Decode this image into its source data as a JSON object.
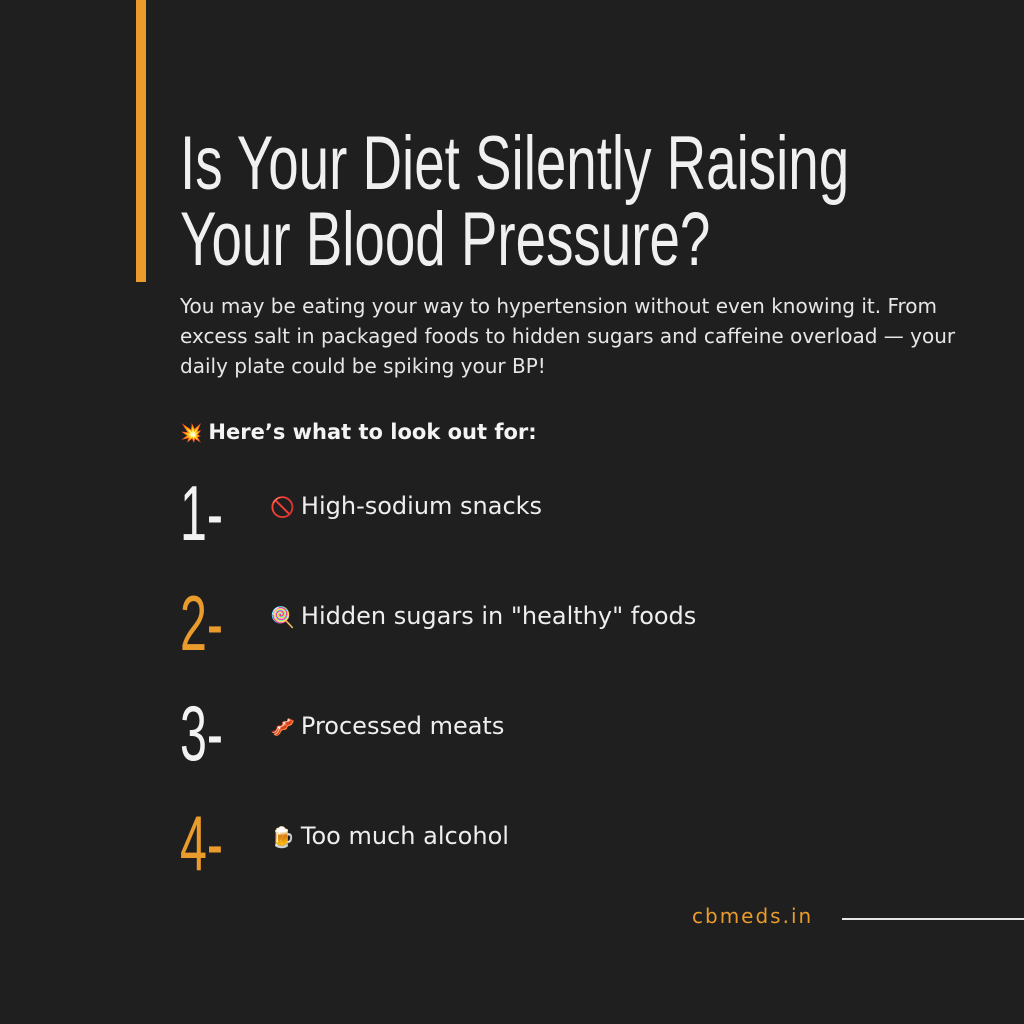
{
  "title": {
    "line1": "Is Your Diet Silently Raising",
    "line2": "Your Blood Pressure?"
  },
  "intro": "You may be eating your way to hypertension without even knowing it. From excess salt in packaged foods to hidden sugars and caffeine overload — your daily plate could be spiking your BP!",
  "lookout": {
    "icon": "💥",
    "label": "Here’s what to look out for:"
  },
  "items": [
    {
      "number": "1-",
      "icon": "🚫",
      "label": "High-sodium snacks"
    },
    {
      "number": "2-",
      "icon": "🍭",
      "label": "Hidden sugars in \"healthy\" foods"
    },
    {
      "number": "3-",
      "icon": "🥓",
      "label": "Processed meats"
    },
    {
      "number": "4-",
      "icon": "🍺",
      "label": "Too much alcohol"
    }
  ],
  "brand": "cbmeds.in",
  "colors": {
    "background": "#1f1f1f",
    "accent": "#e99b2b",
    "text": "#f0f0f0"
  }
}
